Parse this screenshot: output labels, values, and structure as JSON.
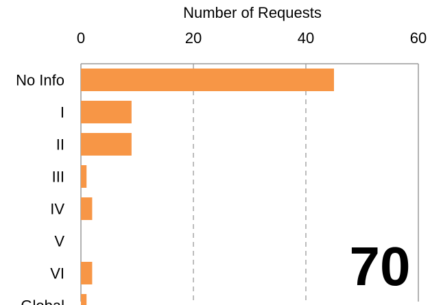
{
  "chart_data": {
    "type": "bar",
    "orientation": "horizontal",
    "title": "",
    "xlabel": "Number of Requests",
    "ylabel": "",
    "xlim": [
      0,
      60
    ],
    "xticks": [
      0,
      20,
      40,
      60
    ],
    "x_axis_position": "top",
    "grid": "vertical dashed",
    "categories": [
      "No Info",
      "I",
      "II",
      "III",
      "IV",
      "V",
      "VI",
      "Global"
    ],
    "values": [
      45,
      9,
      9,
      1,
      2,
      0,
      2,
      1
    ],
    "bar_color": "#f79646",
    "annotation": "70"
  }
}
